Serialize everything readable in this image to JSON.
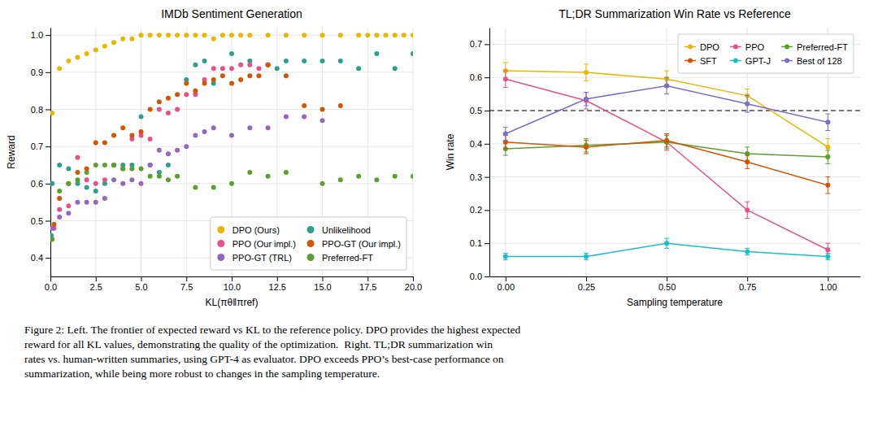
{
  "chart_data": [
    {
      "type": "scatter",
      "title": "IMDb Sentiment Generation",
      "xlabel": "KL(πθ‖πref)",
      "ylabel": "Reward",
      "xlim": [
        0,
        20
      ],
      "ylim": [
        0.35,
        1.02
      ],
      "xticks": [
        {
          "value": 0.0,
          "label": "0.0"
        },
        2.5,
        {
          "value": 5.0,
          "label": "5.0"
        },
        7.5,
        {
          "value": 10.0,
          "label": "10.0"
        },
        12.5,
        {
          "value": 15.0,
          "label": "15.0"
        },
        17.5,
        {
          "value": 20.0,
          "label": "20.0"
        }
      ],
      "yticks": [
        0.4,
        0.5,
        0.6,
        0.7,
        0.8,
        0.9,
        {
          "value": 1.0,
          "label": "1.0"
        }
      ],
      "grid": true,
      "legend": "lower right",
      "series": [
        {
          "name": "DPO (Ours)",
          "color": "#e8b800",
          "x": [
            0.1,
            0.5,
            1.0,
            1.5,
            2.0,
            2.5,
            3.0,
            3.5,
            4.0,
            4.5,
            5.0,
            5.5,
            6.0,
            6.5,
            7.0,
            7.5,
            8.0,
            8.5,
            9.0,
            9.5,
            10.0,
            10.5,
            11.0,
            12.0,
            13.0,
            14.0,
            15.0,
            16.0,
            17.0,
            17.5,
            18.0,
            18.5,
            19.0,
            19.5,
            20.0
          ],
          "values": [
            0.79,
            0.91,
            0.93,
            0.94,
            0.95,
            0.96,
            0.97,
            0.98,
            0.99,
            0.99,
            1.0,
            1.0,
            1.0,
            1.0,
            1.0,
            1.0,
            1.0,
            1.0,
            0.99,
            1.0,
            1.0,
            1.0,
            1.0,
            1.0,
            1.0,
            1.0,
            1.0,
            1.0,
            1.0,
            1.0,
            1.0,
            1.0,
            1.0,
            1.0,
            1.0
          ]
        },
        {
          "name": "Unlikelihood",
          "color": "#2ca08c",
          "x": [
            0.05,
            0.1,
            0.5,
            1.0,
            1.5,
            2.0,
            2.5,
            3.0,
            3.5,
            4.0,
            4.5,
            5.0,
            5.5,
            6.0,
            6.5,
            7.5,
            8.0,
            8.5,
            9.0,
            10.0,
            11.0,
            12.0,
            12.5,
            13.0,
            14.0,
            15.0,
            16.0,
            17.0,
            18.0,
            19.0,
            20.0
          ],
          "values": [
            0.46,
            0.6,
            0.65,
            0.64,
            0.6,
            0.59,
            0.58,
            0.6,
            0.65,
            0.65,
            0.65,
            0.78,
            0.65,
            0.63,
            0.65,
            0.88,
            0.92,
            0.93,
            0.87,
            0.95,
            0.93,
            0.92,
            0.91,
            0.93,
            0.93,
            0.93,
            0.93,
            0.91,
            0.95,
            0.91,
            0.95
          ]
        },
        {
          "name": "PPO (Our impl.)",
          "color": "#e8508a",
          "x": [
            0.2,
            0.5,
            1.0,
            1.5,
            2.0,
            2.5,
            3.0,
            3.5,
            4.0,
            4.5,
            5.0,
            5.5,
            6.0,
            6.5,
            7.0,
            7.5,
            8.0,
            8.5,
            9.0,
            9.5,
            10.0,
            10.5,
            11.0,
            11.5,
            12.0
          ],
          "values": [
            0.48,
            0.53,
            0.54,
            0.67,
            0.61,
            0.6,
            0.61,
            0.65,
            0.64,
            0.72,
            0.73,
            0.72,
            0.8,
            0.79,
            0.8,
            0.84,
            0.84,
            0.88,
            0.91,
            0.91,
            0.91,
            0.92,
            0.92,
            0.91,
            0.92
          ]
        },
        {
          "name": "PPO-GT (Our impl.)",
          "color": "#d45500",
          "x": [
            0.2,
            0.5,
            1.0,
            1.5,
            2.0,
            2.5,
            3.0,
            3.5,
            4.0,
            4.5,
            5.0,
            5.5,
            6.0,
            6.5,
            7.0,
            7.5,
            8.0,
            8.5,
            9.0,
            9.5,
            10.0,
            10.5,
            11.0,
            11.5,
            12.0,
            13.0,
            14.0,
            15.0,
            16.0
          ],
          "values": [
            0.49,
            0.56,
            0.6,
            0.63,
            0.64,
            0.71,
            0.71,
            0.73,
            0.75,
            0.73,
            0.74,
            0.8,
            0.82,
            0.83,
            0.84,
            0.87,
            0.85,
            0.87,
            0.88,
            0.89,
            0.87,
            0.88,
            0.89,
            0.89,
            0.92,
            0.89,
            0.81,
            0.8,
            0.81
          ]
        },
        {
          "name": "PPO-GT (TRL)",
          "color": "#9467bd",
          "x": [
            0.1,
            0.5,
            1.0,
            1.5,
            2.0,
            2.5,
            3.0,
            3.5,
            4.0,
            4.5,
            5.0,
            5.5,
            6.0,
            6.5,
            7.0,
            7.5,
            8.0,
            8.5,
            9.0,
            10.0,
            11.0,
            12.0,
            13.0,
            14.0,
            15.0
          ],
          "values": [
            0.48,
            0.51,
            0.52,
            0.55,
            0.55,
            0.55,
            0.56,
            0.61,
            0.6,
            0.61,
            0.6,
            0.65,
            0.69,
            0.68,
            0.69,
            0.7,
            0.73,
            0.74,
            0.75,
            0.73,
            0.75,
            0.75,
            0.78,
            0.78,
            0.77
          ]
        },
        {
          "name": "Preferred-FT",
          "color": "#5aa02c",
          "x": [
            0.1,
            0.5,
            1.0,
            1.5,
            2.0,
            2.5,
            3.0,
            3.5,
            4.0,
            4.5,
            5.0,
            5.5,
            6.0,
            6.5,
            7.0,
            8.0,
            9.0,
            10.0,
            11.0,
            12.0,
            13.0,
            15.0,
            16.0,
            17.0,
            18.0,
            19.0,
            20.0
          ],
          "values": [
            0.45,
            0.58,
            0.6,
            0.61,
            0.63,
            0.65,
            0.65,
            0.65,
            0.64,
            0.64,
            0.64,
            0.62,
            0.62,
            0.61,
            0.62,
            0.59,
            0.59,
            0.6,
            0.63,
            0.62,
            0.63,
            0.6,
            0.61,
            0.62,
            0.61,
            0.62,
            0.62
          ]
        }
      ],
      "annotations": [
        "Figure 2: Left. The frontier of expected reward vs KL to the reference policy. DPO provides the highest expected",
        "reward for all KL values, demonstrating the quality of the optimization.  Right. TL;DR summarization win",
        "rates vs. human-written summaries, using GPT-4 as evaluator. DPO exceeds PPO’s best-case performance on",
        "summarization, while being more robust to changes in the sampling temperature."
      ]
    },
    {
      "type": "line",
      "title": "TL;DR Summarization Win Rate vs Reference",
      "xlabel": "Sampling temperature",
      "ylabel": "Win rate",
      "x": [
        0.0,
        0.25,
        0.5,
        0.75,
        1.0
      ],
      "xlim": [
        -0.05,
        1.1
      ],
      "ylim": [
        0.0,
        0.75
      ],
      "xticks": [
        {
          "value": 0.0,
          "label": "0.00"
        },
        0.25,
        {
          "value": 0.5,
          "label": "0.50"
        },
        0.75,
        {
          "value": 1.0,
          "label": "1.00"
        }
      ],
      "yticks": [
        {
          "value": 0.0,
          "label": "0.0"
        },
        0.1,
        0.2,
        0.3,
        0.4,
        0.5,
        0.6,
        0.7
      ],
      "grid": true,
      "legend": "upper right",
      "marker": "circle",
      "hline": 0.5,
      "series": [
        {
          "name": "DPO",
          "color": "#e8b800",
          "values": [
            0.62,
            0.615,
            0.595,
            0.545,
            0.39
          ],
          "errors": [
            0.025,
            0.025,
            0.025,
            0.02,
            0.025
          ]
        },
        {
          "name": "PPO",
          "color": "#e8508a",
          "values": [
            0.595,
            0.53,
            0.405,
            0.2,
            0.08
          ],
          "errors": [
            0.025,
            0.025,
            0.025,
            0.025,
            0.02
          ]
        },
        {
          "name": "Preferred-FT",
          "color": "#5aa02c",
          "values": [
            0.385,
            0.395,
            0.405,
            0.37,
            0.36
          ],
          "errors": [
            0.02,
            0.02,
            0.02,
            0.02,
            0.02
          ]
        },
        {
          "name": "SFT",
          "color": "#d45500",
          "values": [
            0.405,
            0.39,
            0.41,
            0.345,
            0.275
          ],
          "errors": [
            0.02,
            0.02,
            0.02,
            0.02,
            0.025
          ]
        },
        {
          "name": "GPT-J",
          "color": "#17becf",
          "values": [
            0.06,
            0.06,
            0.1,
            0.075,
            0.06
          ],
          "errors": [
            0.01,
            0.01,
            0.015,
            0.01,
            0.01
          ]
        },
        {
          "name": "Best of 128",
          "color": "#7b6fc4",
          "values": [
            0.43,
            0.535,
            0.575,
            0.52,
            0.465
          ],
          "errors": [
            0.02,
            0.02,
            0.025,
            0.025,
            0.025
          ]
        }
      ]
    }
  ]
}
